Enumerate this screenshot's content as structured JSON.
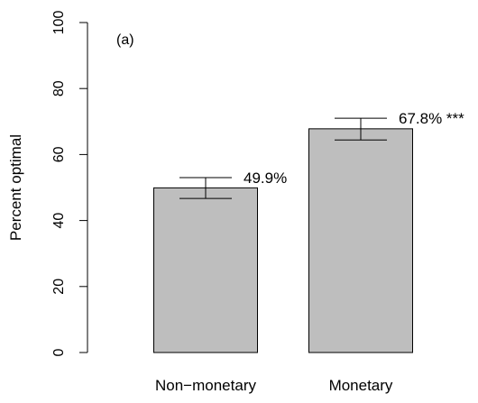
{
  "chart_data": {
    "type": "bar",
    "panel_label": "(a)",
    "title": "",
    "xlabel": "",
    "ylabel": "Percent optimal",
    "ylim": [
      0,
      100
    ],
    "yticks": [
      "0",
      "20",
      "40",
      "60",
      "80",
      "100"
    ],
    "categories": [
      "Non−monetary",
      "Monetary"
    ],
    "values": [
      49.9,
      67.8
    ],
    "error_bars": [
      {
        "lower": 46.7,
        "upper": 53.0
      },
      {
        "lower": 64.4,
        "upper": 71.0
      }
    ],
    "value_labels": [
      "49.9%",
      "67.8% ***"
    ],
    "grid": false,
    "legend": "none",
    "colors": {
      "bar_fill": "#bebebe",
      "bar_stroke": "#000000",
      "axis": "#000000",
      "text": "#000000"
    }
  }
}
